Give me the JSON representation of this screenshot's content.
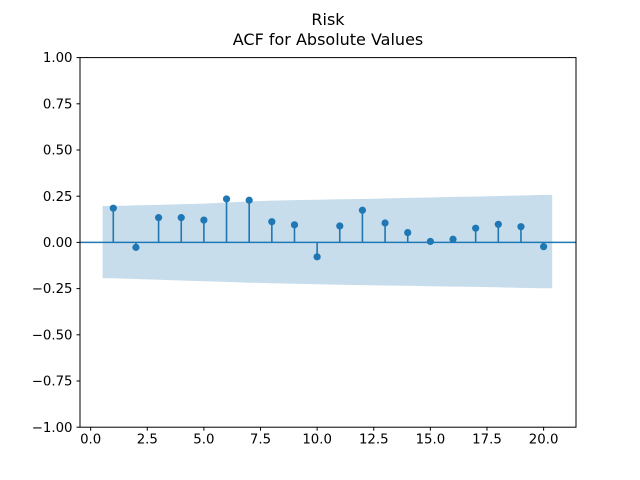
{
  "title": {
    "line1": "Risk",
    "line2": "ACF for Absolute Values"
  },
  "chart_data": {
    "type": "scatter",
    "subtype": "stem-acf-plot",
    "title": "Risk\nACF for Absolute Values",
    "xlabel": "",
    "ylabel": "",
    "xlim": [
      -0.47,
      21.43
    ],
    "ylim": [
      -1.0,
      1.0
    ],
    "grid": false,
    "legend": "none",
    "xticks": [
      0.0,
      2.5,
      5.0,
      7.5,
      10.0,
      12.5,
      15.0,
      17.5,
      20.0
    ],
    "xtick_labels": [
      "0.0",
      "2.5",
      "5.0",
      "7.5",
      "10.0",
      "12.5",
      "15.0",
      "17.5",
      "20.0"
    ],
    "yticks": [
      1.0,
      0.75,
      0.5,
      0.25,
      0.0,
      -0.25,
      -0.5,
      -0.75,
      -1.0
    ],
    "ytick_labels": [
      "1.00",
      "0.75",
      "0.50",
      "0.25",
      "0.00",
      "−0.25",
      "−0.50",
      "−0.75",
      "−1.00"
    ],
    "baseline_y": 0.0,
    "lags": [
      1,
      2,
      3,
      4,
      5,
      6,
      7,
      8,
      9,
      10,
      11,
      12,
      13,
      14,
      15,
      16,
      17,
      18,
      19,
      20
    ],
    "values": [
      0.185,
      -0.027,
      0.134,
      0.134,
      0.121,
      0.235,
      0.228,
      0.112,
      0.095,
      -0.078,
      0.089,
      0.174,
      0.105,
      0.053,
      0.005,
      0.017,
      0.077,
      0.098,
      0.085,
      -0.023
    ],
    "confidence_band": {
      "x_start": 0.53,
      "x_end": 20.38,
      "upper": [
        0.197,
        0.2,
        0.203,
        0.206,
        0.21,
        0.216,
        0.222,
        0.226,
        0.229,
        0.231,
        0.233,
        0.235,
        0.238,
        0.241,
        0.243,
        0.246,
        0.248,
        0.251,
        0.254,
        0.257
      ],
      "lower": [
        -0.194,
        -0.198,
        -0.202,
        -0.206,
        -0.21,
        -0.214,
        -0.218,
        -0.221,
        -0.224,
        -0.227,
        -0.229,
        -0.231,
        -0.233,
        -0.235,
        -0.237,
        -0.239,
        -0.241,
        -0.243,
        -0.246,
        -0.248
      ]
    },
    "colors": {
      "stem": "#1f77b4",
      "marker": "#1f77b4",
      "baseline": "#1f77b4",
      "band": "rgba(31,119,180,0.25)",
      "axis": "#000000",
      "background": "#ffffff"
    }
  }
}
